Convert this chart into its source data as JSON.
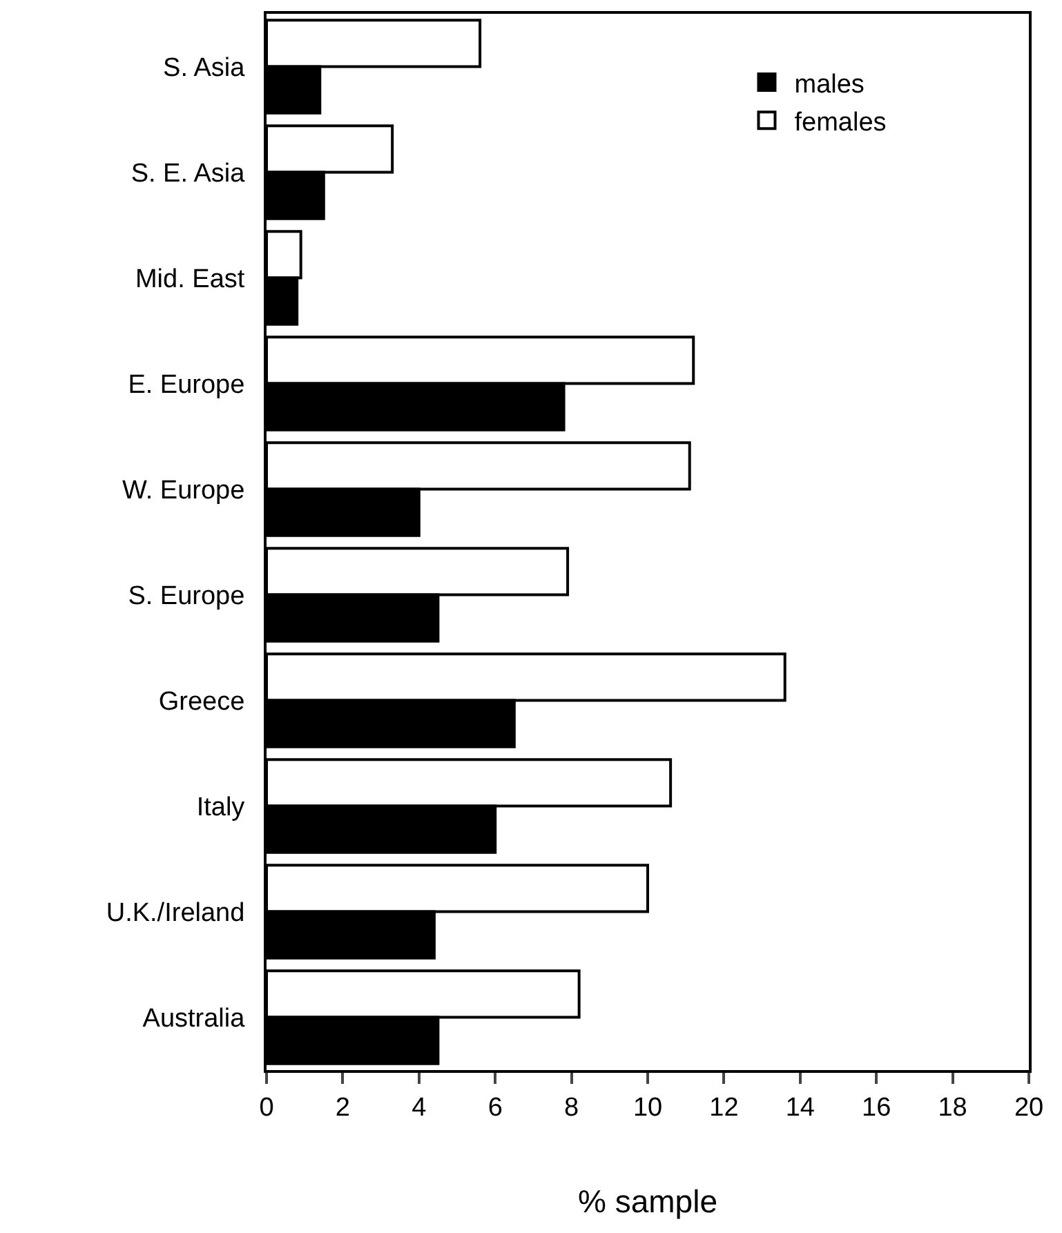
{
  "chart_data": {
    "type": "bar",
    "orientation": "horizontal",
    "xlabel": "% sample",
    "categories": [
      "S. Asia",
      "S. E. Asia",
      "Mid. East",
      "E. Europe",
      "W. Europe",
      "S. Europe",
      "Greece",
      "Italy",
      "U.K./Ireland",
      "Australia"
    ],
    "series": [
      {
        "name": "males",
        "color": "#000000",
        "values": [
          1.4,
          1.5,
          0.8,
          7.8,
          4.0,
          4.5,
          6.5,
          6.0,
          4.4,
          4.5
        ]
      },
      {
        "name": "females",
        "color": "#ffffff",
        "values": [
          5.6,
          3.3,
          0.9,
          11.2,
          11.1,
          7.9,
          13.6,
          10.6,
          10.0,
          8.2
        ]
      }
    ],
    "xlim": [
      0,
      20
    ],
    "xticks": [
      0,
      2,
      4,
      6,
      8,
      10,
      12,
      14,
      16,
      18,
      20
    ],
    "legend": "top right"
  }
}
